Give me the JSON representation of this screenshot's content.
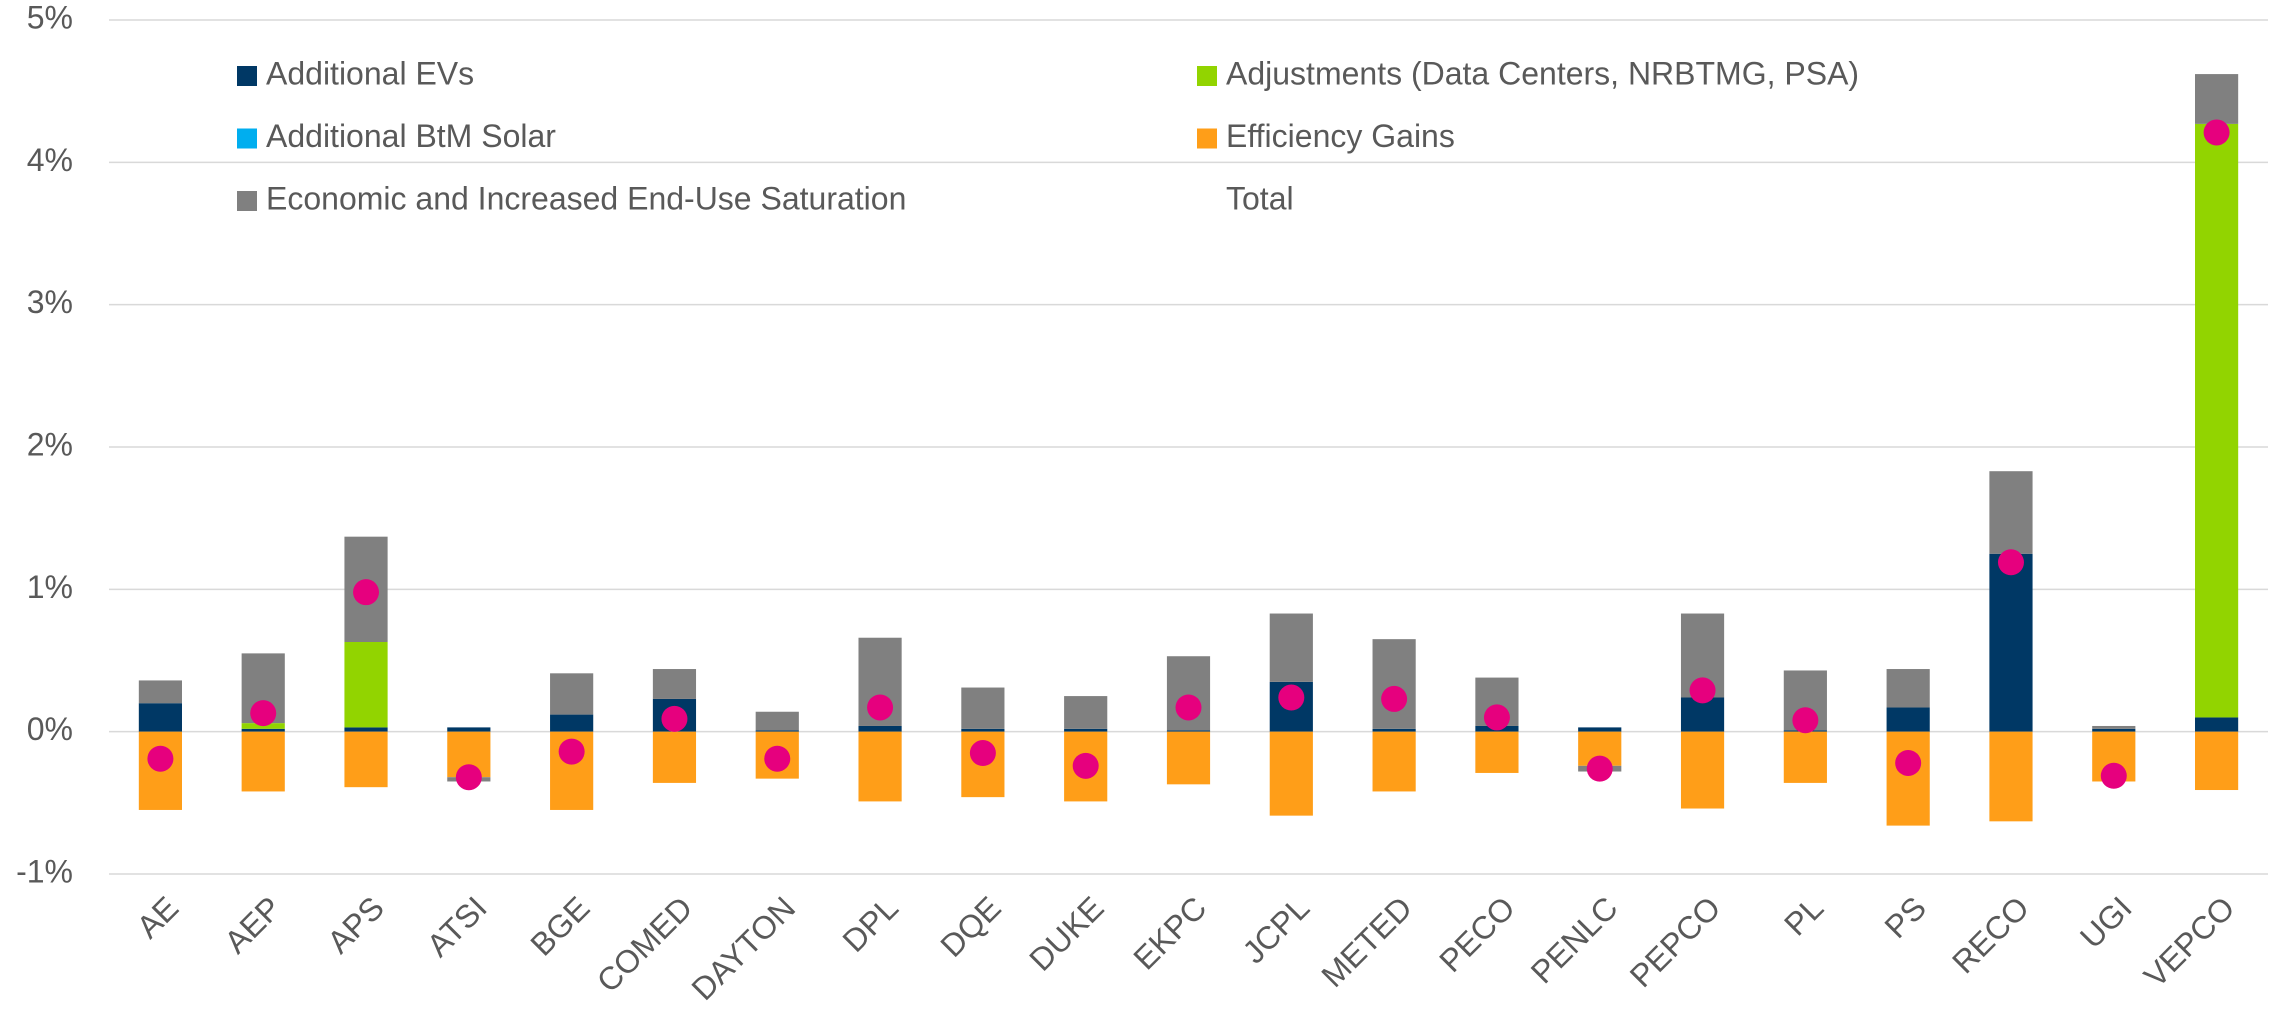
{
  "chart_data": {
    "type": "stacked_bar",
    "categories": [
      "AE",
      "AEP",
      "APS",
      "ATSI",
      "BGE",
      "COMED",
      "DAYTON",
      "DPL",
      "DQE",
      "DUKE",
      "EKPC",
      "JCPL",
      "METED",
      "PECO",
      "PENLC",
      "PEPCO",
      "PL",
      "PS",
      "RECO",
      "UGI",
      "VEPCO"
    ],
    "series": [
      {
        "name": "Additional EVs",
        "color": "#003865",
        "values": [
          0.2,
          0.02,
          0.03,
          0.03,
          0.12,
          0.23,
          0.01,
          0.04,
          0.02,
          0.02,
          0.01,
          0.35,
          0.02,
          0.04,
          0.03,
          0.24,
          0.01,
          0.17,
          1.25,
          0.02,
          0.1
        ]
      },
      {
        "name": "Adjustments (Data Centers, NRBTMG, PSA)",
        "color": "#92d400",
        "values": [
          0,
          0.04,
          0.6,
          0,
          0,
          0,
          0,
          0,
          0,
          0,
          0,
          0,
          0,
          0,
          0,
          0,
          0,
          0,
          0,
          0,
          4.17
        ]
      },
      {
        "name": "Additional BtM Solar",
        "color": "#00aeef",
        "values": [
          0,
          0,
          0,
          0,
          0,
          0,
          0,
          0,
          0,
          0,
          0,
          0,
          0,
          0,
          0,
          0,
          0,
          0,
          0,
          0,
          0
        ]
      },
      {
        "name": "Efficiency Gains",
        "color": "#ff9e18",
        "values": [
          -0.55,
          -0.42,
          -0.39,
          -0.32,
          -0.55,
          -0.36,
          -0.33,
          -0.49,
          -0.46,
          -0.49,
          -0.37,
          -0.59,
          -0.42,
          -0.29,
          -0.24,
          -0.54,
          -0.36,
          -0.66,
          -0.63,
          -0.35,
          -0.41
        ]
      },
      {
        "name": "Economic and Increased End-Use Saturation",
        "color": "#808080",
        "values": [
          0.16,
          0.49,
          0.74,
          -0.03,
          0.29,
          0.21,
          0.13,
          0.62,
          0.29,
          0.23,
          0.52,
          0.48,
          0.63,
          0.34,
          -0.04,
          0.59,
          0.42,
          0.27,
          0.58,
          0.02,
          0.35
        ]
      },
      {
        "name": "Total",
        "color": "#e6007e",
        "type": "dot",
        "values": [
          -0.19,
          0.13,
          0.98,
          -0.32,
          -0.14,
          0.09,
          -0.19,
          0.17,
          -0.15,
          -0.24,
          0.17,
          0.24,
          0.23,
          0.1,
          -0.26,
          0.29,
          0.08,
          -0.22,
          1.19,
          -0.31,
          4.21
        ]
      }
    ],
    "ylim": [
      -1,
      5
    ],
    "yticks": [
      {
        "value": -1,
        "label": "-1%"
      },
      {
        "value": 0,
        "label": "0%"
      },
      {
        "value": 1,
        "label": "1%"
      },
      {
        "value": 2,
        "label": "2%"
      },
      {
        "value": 3,
        "label": "3%"
      },
      {
        "value": 4,
        "label": "4%"
      },
      {
        "value": 5,
        "label": "5%"
      }
    ],
    "grid": true
  }
}
